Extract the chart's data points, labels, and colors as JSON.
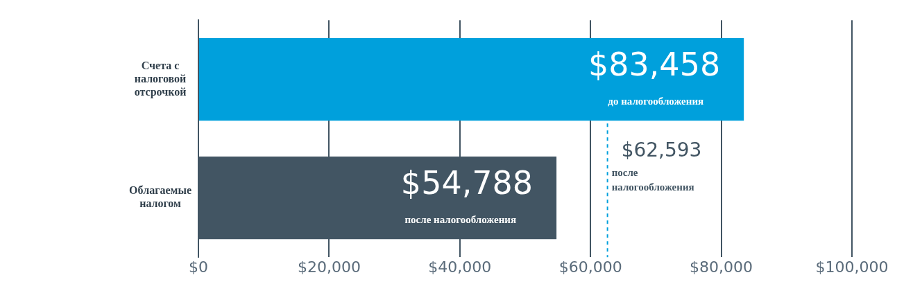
{
  "chart_data": {
    "type": "bar",
    "orientation": "horizontal",
    "categories": [
      "Счета с налоговой отсрочкой",
      "Облагаемые налогом"
    ],
    "values": [
      83458,
      54788
    ],
    "colors": [
      "#00a0dc",
      "#425563"
    ],
    "value_labels": [
      "$83,458",
      "$54,788"
    ],
    "xlim": [
      0,
      100000
    ],
    "xticks": [
      {
        "value": 0,
        "label": "$0"
      },
      {
        "value": 20000,
        "label": "$20,000"
      },
      {
        "value": 40000,
        "label": "$40,000"
      },
      {
        "value": 60000,
        "label": "$60,000"
      },
      {
        "value": 80000,
        "label": "$80,000"
      },
      {
        "value": 100000,
        "label": "$100,000"
      }
    ],
    "grid": "x",
    "ref_lines": [
      {
        "axis": "x",
        "value": 62593,
        "label": "$62,593",
        "color": "#00a0dc",
        "line_style": "dashed"
      }
    ],
    "annotations": [
      "до налогообложения",
      "после налогообложения",
      "после налогообложения"
    ]
  }
}
